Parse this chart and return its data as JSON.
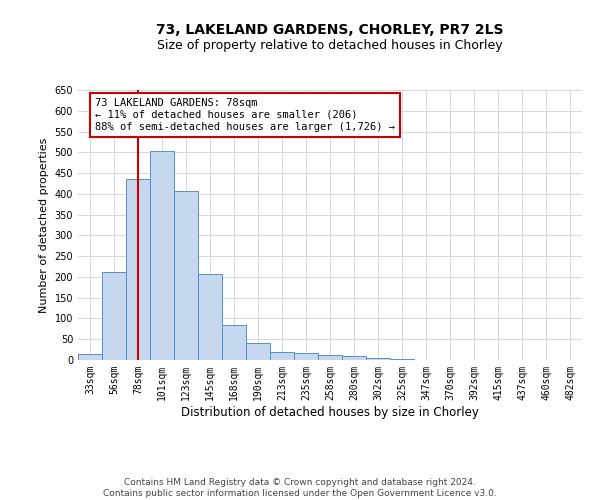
{
  "title": "73, LAKELAND GARDENS, CHORLEY, PR7 2LS",
  "subtitle": "Size of property relative to detached houses in Chorley",
  "xlabel": "Distribution of detached houses by size in Chorley",
  "ylabel": "Number of detached properties",
  "annotation_line1": "73 LAKELAND GARDENS: 78sqm",
  "annotation_line2": "← 11% of detached houses are smaller (206)",
  "annotation_line3": "88% of semi-detached houses are larger (1,726) →",
  "footer1": "Contains HM Land Registry data © Crown copyright and database right 2024.",
  "footer2": "Contains public sector information licensed under the Open Government Licence v3.0.",
  "bin_labels": [
    "33sqm",
    "56sqm",
    "78sqm",
    "101sqm",
    "123sqm",
    "145sqm",
    "168sqm",
    "190sqm",
    "213sqm",
    "235sqm",
    "258sqm",
    "280sqm",
    "302sqm",
    "325sqm",
    "347sqm",
    "370sqm",
    "392sqm",
    "415sqm",
    "437sqm",
    "460sqm",
    "482sqm"
  ],
  "bar_heights": [
    15,
    213,
    435,
    502,
    408,
    207,
    84,
    40,
    19,
    18,
    12,
    10,
    4,
    2,
    1,
    1,
    0,
    0,
    0,
    0,
    0
  ],
  "bar_color": "#c5d8f0",
  "bar_edge_color": "#5a8fc3",
  "red_line_index": 2,
  "ylim": [
    0,
    650
  ],
  "yticks": [
    0,
    50,
    100,
    150,
    200,
    250,
    300,
    350,
    400,
    450,
    500,
    550,
    600,
    650
  ],
  "grid_color": "#d0d8e8",
  "annotation_box_color": "#cc0000",
  "red_line_color": "#cc0000",
  "bg_color": "#ffffff",
  "title_fontsize": 10,
  "subtitle_fontsize": 9,
  "tick_fontsize": 7,
  "ylabel_fontsize": 8,
  "xlabel_fontsize": 8.5,
  "annotation_fontsize": 7.5,
  "footer_fontsize": 6.5
}
